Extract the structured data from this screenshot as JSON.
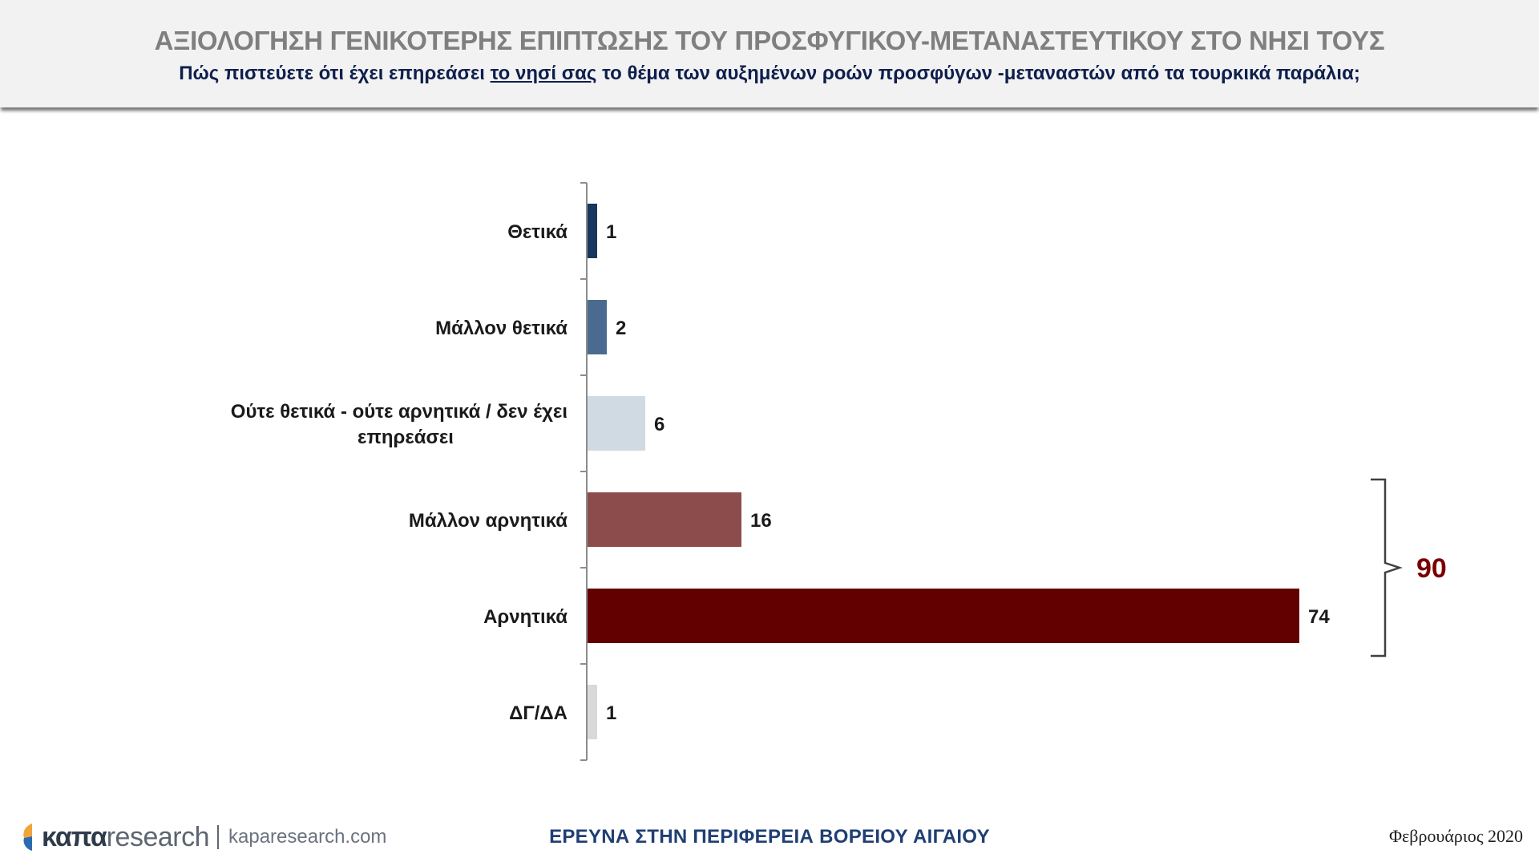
{
  "header": {
    "title": "ΑΞΙΟΛΟΓΗΣΗ ΓΕΝΙΚΟΤΕΡΗΣ ΕΠΙΠΤΩΣΗΣ ΤΟΥ ΠΡΟΣΦΥΓΙΚΟΥ-ΜΕΤΑΝΑΣΤΕΥΤΙΚΟΥ ΣΤΟ ΝΗΣΙ ΤΟΥΣ",
    "subtitle_before": "Πώς πιστεύετε ότι έχει επηρεάσει ",
    "subtitle_underlined": "το νησί σας",
    "subtitle_after": " το θέμα των αυξημένων ροών προσφύγων -μεταναστών από τα τουρκικά παράλια;"
  },
  "chart_data": {
    "type": "bar",
    "orientation": "horizontal",
    "categories": [
      [
        "Θετικά"
      ],
      [
        "Μάλλον θετικά"
      ],
      [
        "Ούτε θετικά - ούτε αρνητικά / δεν έχει",
        "επηρεάσει"
      ],
      [
        "Μάλλον αρνητικά"
      ],
      [
        "Αρνητικά"
      ],
      [
        "ΔΓ/ΔΑ"
      ]
    ],
    "values": [
      1,
      2,
      6,
      16,
      74,
      1
    ],
    "data_labels": [
      "1",
      "2",
      "6",
      "16",
      "74",
      "1"
    ],
    "colors": [
      "#17375e",
      "#4a6b8f",
      "#d0dae2",
      "#8c4c4c",
      "#620000",
      "#d9d9d9"
    ],
    "xlim": [
      0,
      100
    ],
    "grid": false,
    "legend": "none",
    "bracket": {
      "from_index": 3,
      "to_index": 4,
      "label": "90",
      "color": "#7a0000"
    }
  },
  "footer": {
    "logo_bold": "καπα",
    "logo_light": "research",
    "url": "kaparesearch.com",
    "center": "ΕΡΕΥΝΑ ΣΤΗΝ ΠΕΡΙΦΕΡΕΙΑ ΒΟΡΕΙΟΥ ΑΙΓΑΙΟΥ",
    "date": "Φεβρουάριος 2020"
  }
}
